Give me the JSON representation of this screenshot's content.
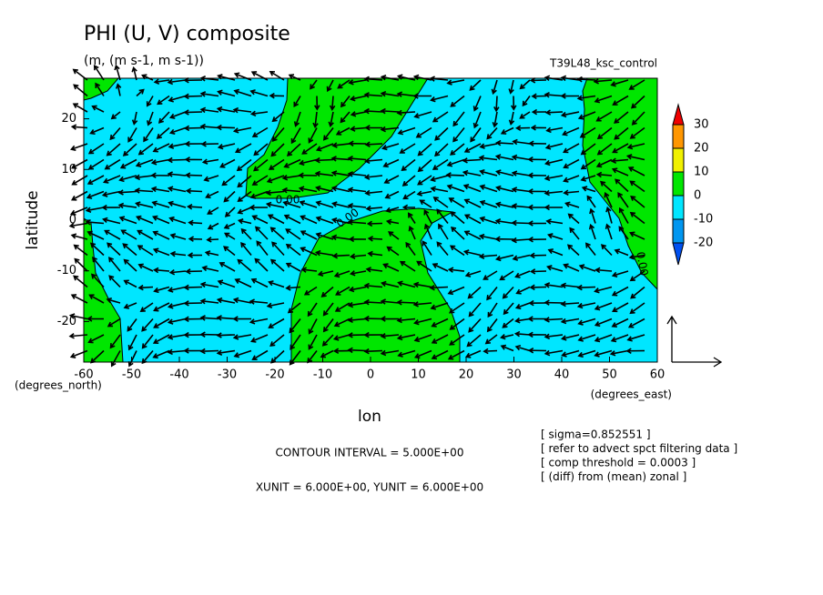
{
  "chart_data": {
    "type": "contour",
    "title": "PHI (U, V) composite",
    "subtitle": "(m, (m s-1, m s-1))",
    "run_label": "T39L48_ksc_control",
    "xlabel": "lon",
    "ylabel": "latitude",
    "xunit_label": "(degrees_east)",
    "yunit_label": "(degrees_north)",
    "xlim": [
      -60,
      60
    ],
    "ylim": [
      -28,
      28
    ],
    "xticks": [
      -60,
      -50,
      -40,
      -30,
      -20,
      -10,
      0,
      10,
      20,
      30,
      40,
      50,
      60
    ],
    "yticks": [
      -20,
      -10,
      0,
      10,
      20
    ],
    "contour_labels": [
      "0.00",
      "0.00",
      "0.00"
    ],
    "colorbar": {
      "levels": [
        -20,
        -10,
        0,
        10,
        20,
        30
      ],
      "colors": [
        "#0050f0",
        "#0096f0",
        "#00e6ff",
        "#00e600",
        "#f0f000",
        "#ff9600",
        "#f00000"
      ]
    },
    "contour_interval": "CONTOUR INTERVAL = 5.000E+00",
    "unit_vector": "XUNIT = 6.000E+00, YUNIT = 6.000E+00",
    "annotations": [
      "[ sigma=0.852551 ]",
      "[ refer to advect spct filtering data ]",
      "[ comp threshold = 0.0003 ]",
      "[ (diff) from (mean) zonal ]"
    ]
  }
}
